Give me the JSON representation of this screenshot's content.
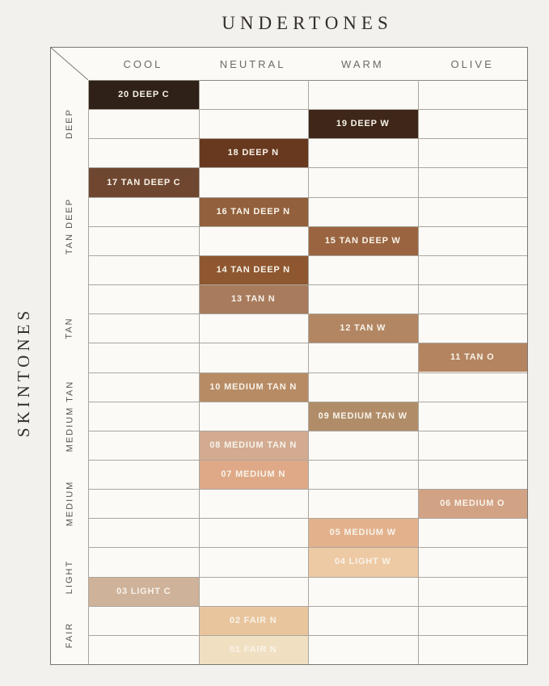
{
  "title": "UNDERTONES",
  "side_label": "SKINTONES",
  "colors": {
    "page_bg": "#f3f1ed",
    "frame_bg": "#fbfaf7",
    "frame_border": "#7b766f",
    "grid_line": "#aba69f",
    "title_text": "#332e29",
    "header_text": "#6f6a64",
    "group_text": "#57524c",
    "cell_text": "#f8f3ea"
  },
  "chart_data": {
    "type": "heatmap",
    "title": "UNDERTONES",
    "x_axis_label": "UNDERTONES",
    "y_axis_label": "SKINTONES",
    "columns": [
      "COOL",
      "NEUTRAL",
      "WARM",
      "OLIVE"
    ],
    "row_groups": [
      {
        "label": "DEEP",
        "rows": 3
      },
      {
        "label": "TAN DEEP",
        "rows": 4
      },
      {
        "label": "TAN",
        "rows": 3
      },
      {
        "label": "MEDIUM TAN",
        "rows": 3
      },
      {
        "label": "MEDIUM",
        "rows": 3
      },
      {
        "label": "LIGHT",
        "rows": 2
      },
      {
        "label": "FAIR",
        "rows": 2
      }
    ],
    "grid": {
      "rows": 20,
      "cols": 4
    },
    "cells": [
      {
        "row": 1,
        "column": "COOL",
        "label": "20 DEEP C",
        "color": "#2f2118"
      },
      {
        "row": 2,
        "column": "WARM",
        "label": "19 DEEP W",
        "color": "#3e2718"
      },
      {
        "row": 3,
        "column": "NEUTRAL",
        "label": "18 DEEP N",
        "color": "#68391f"
      },
      {
        "row": 4,
        "column": "COOL",
        "label": "17 TAN DEEP C",
        "color": "#6f4730"
      },
      {
        "row": 5,
        "column": "NEUTRAL",
        "label": "16 TAN DEEP N",
        "color": "#92603c"
      },
      {
        "row": 6,
        "column": "WARM",
        "label": "15 TAN DEEP W",
        "color": "#9a6440"
      },
      {
        "row": 7,
        "column": "NEUTRAL",
        "label": "14 TAN DEEP N",
        "color": "#8e5730"
      },
      {
        "row": 8,
        "column": "NEUTRAL",
        "label": "13 TAN N",
        "color": "#a87b5d"
      },
      {
        "row": 9,
        "column": "WARM",
        "label": "12 TAN W",
        "color": "#b28663"
      },
      {
        "row": 10,
        "column": "OLIVE",
        "label": "11 TAN O",
        "color": "#b4835f"
      },
      {
        "row": 11,
        "column": "NEUTRAL",
        "label": "10 MEDIUM TAN N",
        "color": "#b78b64"
      },
      {
        "row": 12,
        "column": "WARM",
        "label": "09 MEDIUM TAN W",
        "color": "#b08d68"
      },
      {
        "row": 13,
        "column": "NEUTRAL",
        "label": "08 MEDIUM TAN N",
        "color": "#d2ab91"
      },
      {
        "row": 14,
        "column": "NEUTRAL",
        "label": "07 MEDIUM N",
        "color": "#dfa987"
      },
      {
        "row": 15,
        "column": "OLIVE",
        "label": "06 MEDIUM O",
        "color": "#d2a284"
      },
      {
        "row": 16,
        "column": "WARM",
        "label": "05 MEDIUM W",
        "color": "#e3b28d"
      },
      {
        "row": 17,
        "column": "WARM",
        "label": "04 LIGHT W",
        "color": "#edcaa4"
      },
      {
        "row": 18,
        "column": "COOL",
        "label": "03 LIGHT C",
        "color": "#cfb29a"
      },
      {
        "row": 19,
        "column": "NEUTRAL",
        "label": "02 FAIR N",
        "color": "#e9c59e"
      },
      {
        "row": 20,
        "column": "NEUTRAL",
        "label": "01 FAIR N",
        "color": "#f1dfc2"
      }
    ]
  }
}
